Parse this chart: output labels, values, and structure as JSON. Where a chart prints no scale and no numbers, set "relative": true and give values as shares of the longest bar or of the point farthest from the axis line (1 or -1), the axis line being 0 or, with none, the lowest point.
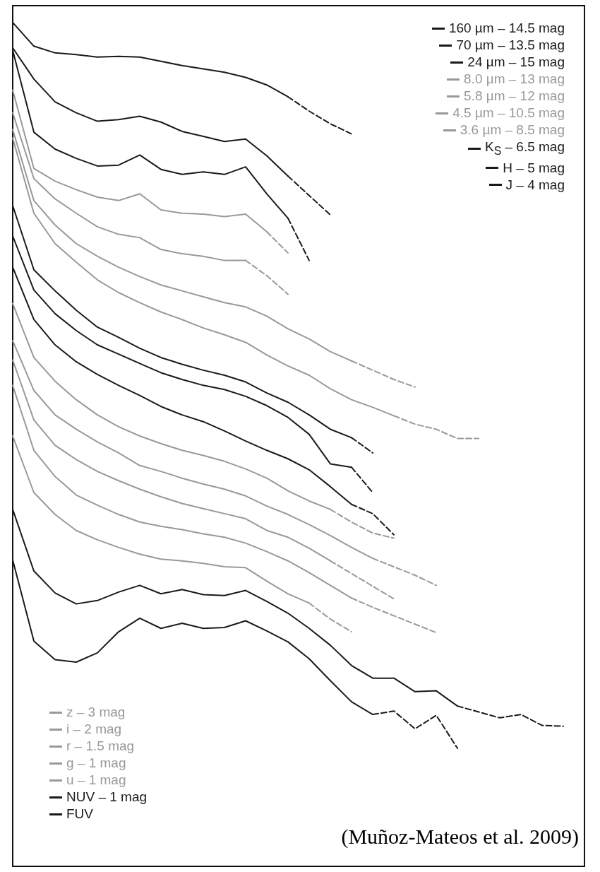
{
  "chart_data": {
    "type": "line",
    "relative": true,
    "legend": "top right",
    "categories": [
      null,
      null,
      null,
      null,
      null,
      null,
      null,
      null,
      null,
      null,
      null,
      null,
      null,
      null,
      null,
      null,
      null,
      null,
      null,
      null,
      null,
      null,
      null,
      null,
      null,
      null,
      null,
      null
    ],
    "series": [
      {
        "name": "160 µm – 14.5 mag",
        "color": "#1a1a1a",
        "line_style": "solid",
        "values": [
          1.0,
          0.972,
          0.964,
          0.962,
          0.959,
          0.96,
          0.959,
          0.954,
          0.949,
          0.945,
          0.941,
          0.935,
          0.926,
          0.912,
          null,
          null,
          null,
          null,
          null,
          null,
          null,
          null,
          null,
          null,
          null,
          null,
          null,
          null
        ]
      },
      {
        "color": "#1a1a1a",
        "line_style": "dashed",
        "values": [
          null,
          null,
          null,
          null,
          null,
          null,
          null,
          null,
          null,
          null,
          null,
          null,
          null,
          0.912,
          0.895,
          0.88,
          0.868,
          null,
          null,
          null,
          null,
          null,
          null,
          null,
          null,
          null,
          null,
          null
        ]
      },
      {
        "name": "70 µm – 13.5 mag",
        "color": "#1a1a1a",
        "line_style": "solid",
        "values": [
          0.97,
          0.933,
          0.906,
          0.893,
          0.883,
          0.885,
          0.889,
          0.882,
          0.871,
          0.865,
          0.859,
          0.862,
          0.842,
          0.818,
          null,
          null,
          null,
          null,
          null,
          null,
          null,
          null,
          null,
          null,
          null,
          null,
          null,
          null
        ]
      },
      {
        "color": "#1a1a1a",
        "line_style": "dashed",
        "values": [
          null,
          null,
          null,
          null,
          null,
          null,
          null,
          null,
          null,
          null,
          null,
          null,
          null,
          0.818,
          0.795,
          0.772,
          null,
          null,
          null,
          null,
          null,
          null,
          null,
          null,
          null,
          null,
          null,
          null
        ]
      },
      {
        "name": "24 µm – 15 mag",
        "color": "#1a1a1a",
        "line_style": "solid",
        "values": [
          0.967,
          0.87,
          0.85,
          0.839,
          0.83,
          0.831,
          0.843,
          0.826,
          0.82,
          0.823,
          0.82,
          0.829,
          0.797,
          0.768,
          null,
          null,
          null,
          null,
          null,
          null,
          null,
          null,
          null,
          null,
          null,
          null,
          null,
          null
        ]
      },
      {
        "color": "#1a1a1a",
        "line_style": "dashed",
        "values": [
          null,
          null,
          null,
          null,
          null,
          null,
          null,
          null,
          null,
          null,
          null,
          null,
          null,
          0.768,
          0.718,
          null,
          null,
          null,
          null,
          null,
          null,
          null,
          null,
          null,
          null,
          null,
          null,
          null
        ]
      },
      {
        "name": "8.0 µm – 13 mag",
        "color": "#999999",
        "line_style": "solid",
        "values": [
          0.92,
          0.827,
          0.812,
          0.802,
          0.793,
          0.789,
          0.797,
          0.778,
          0.774,
          0.773,
          0.77,
          0.773,
          0.752,
          null,
          null,
          null,
          null,
          null,
          null,
          null,
          null,
          null,
          null,
          null,
          null,
          null,
          null,
          null
        ]
      },
      {
        "color": "#999999",
        "line_style": "dashed",
        "values": [
          null,
          null,
          null,
          null,
          null,
          null,
          null,
          null,
          null,
          null,
          null,
          null,
          0.752,
          0.727,
          null,
          null,
          null,
          null,
          null,
          null,
          null,
          null,
          null,
          null,
          null,
          null,
          null,
          null
        ]
      },
      {
        "name": "5.8 µm – 12 mag",
        "color": "#999999",
        "line_style": "solid",
        "values": [
          0.893,
          0.815,
          0.791,
          0.774,
          0.758,
          0.749,
          0.745,
          0.731,
          0.726,
          0.723,
          0.718,
          0.718,
          null,
          null,
          null,
          null,
          null,
          null,
          null,
          null,
          null,
          null,
          null,
          null,
          null,
          null,
          null,
          null
        ]
      },
      {
        "color": "#999999",
        "line_style": "dashed",
        "values": [
          null,
          null,
          null,
          null,
          null,
          null,
          null,
          null,
          null,
          null,
          null,
          0.718,
          0.7,
          0.678,
          null,
          null,
          null,
          null,
          null,
          null,
          null,
          null,
          null,
          null,
          null,
          null,
          null,
          null
        ]
      },
      {
        "name": "4.5 µm – 10.5 mag",
        "color": "#999999",
        "line_style": "solid",
        "values": [
          0.873,
          0.789,
          0.76,
          0.738,
          0.723,
          0.71,
          0.699,
          0.689,
          0.682,
          0.675,
          0.668,
          0.663,
          0.652,
          0.637,
          0.625,
          0.61,
          0.599,
          null,
          null,
          null,
          null,
          null,
          null,
          null,
          null,
          null,
          null,
          null
        ]
      },
      {
        "color": "#999999",
        "line_style": "dashed",
        "values": [
          null,
          null,
          null,
          null,
          null,
          null,
          null,
          null,
          null,
          null,
          null,
          null,
          null,
          null,
          null,
          null,
          0.599,
          0.588,
          0.577,
          0.568,
          null,
          null,
          null,
          null,
          null,
          null,
          null,
          null
        ]
      },
      {
        "name": "3.6 µm – 8.5 mag",
        "color": "#999999",
        "line_style": "solid",
        "values": [
          0.863,
          0.774,
          0.738,
          0.716,
          0.695,
          0.68,
          0.668,
          0.657,
          0.648,
          0.638,
          0.63,
          0.621,
          0.606,
          0.593,
          0.582,
          0.566,
          0.553,
          0.544,
          0.534,
          null,
          null,
          null,
          null,
          null,
          null,
          null,
          null,
          null
        ]
      },
      {
        "color": "#999999",
        "line_style": "dashed",
        "values": [
          null,
          null,
          null,
          null,
          null,
          null,
          null,
          null,
          null,
          null,
          null,
          null,
          null,
          null,
          null,
          null,
          null,
          null,
          0.534,
          0.524,
          0.518,
          0.507,
          0.507,
          null,
          null,
          null,
          null,
          null
        ]
      },
      {
        "name": "K$_{S}$ – 6.5 mag",
        "color": "#1a1a1a",
        "line_style": "solid",
        "values": [
          0.783,
          0.707,
          0.682,
          0.659,
          0.639,
          0.627,
          0.614,
          0.603,
          0.595,
          0.588,
          0.582,
          0.574,
          0.561,
          0.55,
          0.535,
          0.518,
          0.508,
          null,
          null,
          null,
          null,
          null,
          null,
          null,
          null,
          null,
          null,
          null
        ]
      },
      {
        "color": "#1a1a1a",
        "line_style": "dashed",
        "values": [
          null,
          null,
          null,
          null,
          null,
          null,
          null,
          null,
          null,
          null,
          null,
          null,
          null,
          null,
          null,
          null,
          0.508,
          0.49,
          null,
          null,
          null,
          null,
          null,
          null,
          null,
          null,
          null,
          null
        ]
      },
      {
        "name": "H – 5 mag",
        "color": "#1a1a1a",
        "line_style": "solid",
        "values": [
          0.747,
          0.683,
          0.655,
          0.635,
          0.618,
          0.607,
          0.596,
          0.585,
          0.577,
          0.57,
          0.565,
          0.557,
          0.546,
          0.532,
          0.512,
          0.477,
          0.473,
          null,
          null,
          null,
          null,
          null,
          null,
          null,
          null,
          null,
          null,
          null
        ]
      },
      {
        "color": "#1a1a1a",
        "line_style": "dashed",
        "values": [
          null,
          null,
          null,
          null,
          null,
          null,
          null,
          null,
          null,
          null,
          null,
          null,
          null,
          null,
          null,
          null,
          0.473,
          0.443,
          null,
          null,
          null,
          null,
          null,
          null,
          null,
          null,
          null,
          null
        ]
      },
      {
        "name": "J – 4 mag",
        "color": "#1a1a1a",
        "line_style": "solid",
        "values": [
          0.71,
          0.648,
          0.618,
          0.598,
          0.583,
          0.57,
          0.558,
          0.545,
          0.535,
          0.527,
          0.516,
          0.504,
          0.493,
          0.483,
          0.47,
          0.45,
          0.429,
          null,
          null,
          null,
          null,
          null,
          null,
          null,
          null,
          null,
          null,
          null
        ]
      },
      {
        "color": "#1a1a1a",
        "line_style": "dashed",
        "values": [
          null,
          null,
          null,
          null,
          null,
          null,
          null,
          null,
          null,
          null,
          null,
          null,
          null,
          null,
          null,
          null,
          0.429,
          0.418,
          0.393,
          null,
          null,
          null,
          null,
          null,
          null,
          null,
          null,
          null
        ]
      },
      {
        "name": "z – 3 mag",
        "color": "#999999",
        "line_style": "solid",
        "values": [
          0.667,
          0.603,
          0.575,
          0.553,
          0.535,
          0.521,
          0.51,
          0.501,
          0.493,
          0.487,
          0.48,
          0.471,
          0.46,
          0.445,
          0.433,
          0.423,
          null,
          null,
          null,
          null,
          null,
          null,
          null,
          null,
          null,
          null,
          null,
          null
        ]
      },
      {
        "color": "#999999",
        "line_style": "dashed",
        "values": [
          null,
          null,
          null,
          null,
          null,
          null,
          null,
          null,
          null,
          null,
          null,
          null,
          null,
          null,
          null,
          0.423,
          0.408,
          0.395,
          0.389,
          null,
          null,
          null,
          null,
          null,
          null,
          null,
          null,
          null
        ]
      },
      {
        "name": "i – 2 mag",
        "color": "#999999",
        "line_style": "solid",
        "values": [
          0.623,
          0.564,
          0.535,
          0.518,
          0.503,
          0.49,
          0.475,
          0.468,
          0.46,
          0.453,
          0.447,
          0.439,
          0.427,
          0.417,
          0.405,
          0.392,
          0.378,
          0.365,
          null,
          null,
          null,
          null,
          null,
          null,
          null,
          null,
          null,
          null
        ]
      },
      {
        "color": "#999999",
        "line_style": "dashed",
        "values": [
          null,
          null,
          null,
          null,
          null,
          null,
          null,
          null,
          null,
          null,
          null,
          null,
          null,
          null,
          null,
          null,
          null,
          0.365,
          0.355,
          0.345,
          0.333,
          null,
          null,
          null,
          null,
          null,
          null,
          null
        ]
      },
      {
        "name": "r – 1.5 mag",
        "color": "#999999",
        "line_style": "solid",
        "values": [
          0.6,
          0.529,
          0.499,
          0.482,
          0.468,
          0.457,
          0.447,
          0.438,
          0.43,
          0.424,
          0.418,
          0.412,
          0.398,
          0.39,
          0.377,
          0.362,
          null,
          null,
          null,
          null,
          null,
          null,
          null,
          null,
          null,
          null,
          null,
          null
        ]
      },
      {
        "color": "#999999",
        "line_style": "dashed",
        "values": [
          null,
          null,
          null,
          null,
          null,
          null,
          null,
          null,
          null,
          null,
          null,
          null,
          null,
          null,
          null,
          0.362,
          0.347,
          0.332,
          0.317,
          null,
          null,
          null,
          null,
          null,
          null,
          null,
          null,
          null
        ]
      },
      {
        "name": "g – 1 mag",
        "color": "#999999",
        "line_style": "solid",
        "values": [
          0.57,
          0.493,
          0.462,
          0.44,
          0.428,
          0.417,
          0.408,
          0.403,
          0.399,
          0.394,
          0.39,
          0.383,
          0.373,
          0.362,
          0.348,
          0.333,
          0.318,
          null,
          null,
          null,
          null,
          null,
          null,
          null,
          null,
          null,
          null,
          null
        ]
      },
      {
        "color": "#999999",
        "line_style": "dashed",
        "values": [
          null,
          null,
          null,
          null,
          null,
          null,
          null,
          null,
          null,
          null,
          null,
          null,
          null,
          null,
          null,
          null,
          0.318,
          0.307,
          0.297,
          0.287,
          0.277,
          null,
          null,
          null,
          null,
          null,
          null,
          null
        ]
      },
      {
        "name": "u – 1 mag",
        "color": "#999999",
        "line_style": "solid",
        "values": [
          0.51,
          0.443,
          0.417,
          0.398,
          0.387,
          0.378,
          0.37,
          0.364,
          0.362,
          0.359,
          0.355,
          0.354,
          0.338,
          0.323,
          0.312,
          null,
          null,
          null,
          null,
          null,
          null,
          null,
          null,
          null,
          null,
          null,
          null,
          null
        ]
      },
      {
        "color": "#999999",
        "line_style": "dashed",
        "values": [
          null,
          null,
          null,
          null,
          null,
          null,
          null,
          null,
          null,
          null,
          null,
          null,
          null,
          null,
          0.312,
          0.293,
          0.278,
          null,
          null,
          null,
          null,
          null,
          null,
          null,
          null,
          null,
          null,
          null
        ]
      },
      {
        "name": "NUV – 1 mag",
        "color": "#1a1a1a",
        "line_style": "solid",
        "values": [
          0.423,
          0.35,
          0.324,
          0.311,
          0.315,
          0.325,
          0.333,
          0.323,
          0.328,
          0.322,
          0.321,
          0.327,
          0.314,
          0.3,
          0.282,
          0.262,
          0.238,
          0.223,
          0.223,
          0.207,
          0.208,
          0.19,
          null,
          null,
          null,
          null,
          null,
          null
        ]
      },
      {
        "color": "#1a1a1a",
        "line_style": "dashed",
        "values": [
          null,
          null,
          null,
          null,
          null,
          null,
          null,
          null,
          null,
          null,
          null,
          null,
          null,
          null,
          null,
          null,
          null,
          null,
          null,
          null,
          null,
          0.19,
          0.183,
          0.176,
          0.18,
          0.167,
          0.166,
          null
        ]
      },
      {
        "name": "FUV",
        "color": "#1a1a1a",
        "line_style": "solid",
        "values": [
          0.363,
          0.267,
          0.245,
          0.242,
          0.253,
          0.278,
          0.294,
          0.282,
          0.288,
          0.282,
          0.283,
          0.291,
          0.279,
          0.266,
          0.246,
          0.22,
          0.195,
          0.18,
          null,
          null,
          null,
          null,
          null,
          null,
          null,
          null,
          null,
          null
        ]
      },
      {
        "color": "#1a1a1a",
        "line_style": "dashed",
        "values": [
          null,
          null,
          null,
          null,
          null,
          null,
          null,
          null,
          null,
          null,
          null,
          null,
          null,
          null,
          null,
          null,
          null,
          0.18,
          0.184,
          0.163,
          0.179,
          0.14,
          null,
          null,
          null,
          null,
          null,
          null
        ]
      }
    ],
    "annotations": [
      "(Muñoz-Mateos et al. 2009)"
    ]
  }
}
